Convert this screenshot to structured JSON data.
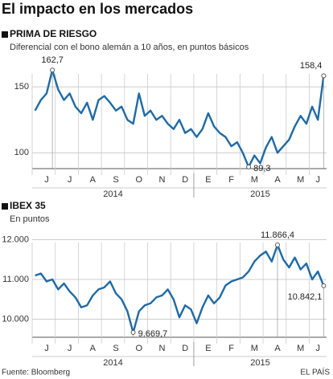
{
  "title": "El impacto en los mercados",
  "chart_data": [
    {
      "type": "line",
      "title": "PRIMA DE RIESGO",
      "subtitle": "Diferencial con el bono alemán a 10 años, en puntos básicos",
      "categories": [
        null,
        null,
        "J",
        null,
        null,
        null,
        "J",
        null,
        null,
        null,
        "A",
        null,
        null,
        null,
        "S",
        null,
        null,
        null,
        "O",
        null,
        null,
        null,
        "N",
        null,
        null,
        null,
        "D",
        null,
        null,
        null,
        "E",
        null,
        null,
        null,
        "F",
        null,
        null,
        null,
        "M",
        null,
        null,
        null,
        "A",
        null,
        null,
        null,
        "M",
        null,
        null,
        "J",
        null
      ],
      "years": [
        "2014",
        "2015"
      ],
      "values": [
        132,
        140,
        145,
        162.7,
        148,
        140,
        145,
        135,
        130,
        138,
        125,
        140,
        143,
        138,
        132,
        135,
        125,
        122,
        145,
        128,
        132,
        125,
        128,
        122,
        118,
        125,
        115,
        118,
        112,
        118,
        130,
        120,
        115,
        112,
        105,
        108,
        100,
        89.3,
        98,
        92,
        104,
        112,
        100,
        105,
        110,
        120,
        128,
        122,
        135,
        125,
        158.4
      ],
      "value_labels": [
        null,
        null,
        null,
        "162,7",
        null,
        null,
        null,
        null,
        null,
        null,
        null,
        null,
        null,
        null,
        null,
        null,
        null,
        null,
        null,
        null,
        null,
        null,
        null,
        null,
        null,
        null,
        null,
        null,
        null,
        null,
        null,
        null,
        null,
        null,
        null,
        null,
        null,
        "89,3",
        null,
        null,
        null,
        null,
        null,
        null,
        null,
        null,
        null,
        null,
        null,
        null,
        "158,4"
      ],
      "color": "#1f6aa5",
      "ylim": [
        88,
        172
      ],
      "yticks": [
        100,
        150
      ],
      "grid": true
    },
    {
      "type": "line",
      "title": "IBEX 35",
      "subtitle": "En puntos",
      "categories": [
        null,
        null,
        "J",
        null,
        null,
        null,
        "J",
        null,
        null,
        null,
        "A",
        null,
        null,
        null,
        "S",
        null,
        null,
        null,
        "O",
        null,
        null,
        null,
        "N",
        null,
        null,
        null,
        "D",
        null,
        null,
        null,
        "E",
        null,
        null,
        null,
        "F",
        null,
        null,
        null,
        "M",
        null,
        null,
        null,
        "A",
        null,
        null,
        null,
        "M",
        null,
        null,
        "J",
        null
      ],
      "years": [
        "2014",
        "2015"
      ],
      "values": [
        11100,
        11150,
        10950,
        11000,
        10750,
        10900,
        10700,
        10550,
        10300,
        10350,
        10600,
        10750,
        10800,
        10950,
        10650,
        10500,
        10200,
        9669.7,
        10200,
        10350,
        10400,
        10550,
        10600,
        10750,
        10500,
        10050,
        10350,
        10250,
        9900,
        10300,
        10600,
        10400,
        10550,
        10850,
        10950,
        11000,
        11050,
        11200,
        11450,
        11600,
        11700,
        11450,
        11866.4,
        11500,
        11300,
        11550,
        11250,
        11400,
        11000,
        11200,
        10842.1
      ],
      "value_labels": [
        null,
        null,
        null,
        null,
        null,
        null,
        null,
        null,
        null,
        null,
        null,
        null,
        null,
        null,
        null,
        null,
        null,
        "9.669,7",
        null,
        null,
        null,
        null,
        null,
        null,
        null,
        null,
        null,
        null,
        null,
        null,
        null,
        null,
        null,
        null,
        null,
        null,
        null,
        null,
        null,
        null,
        null,
        null,
        "11.866,4",
        null,
        null,
        null,
        null,
        null,
        null,
        null,
        "10.842,1"
      ],
      "color": "#1f6aa5",
      "ylim": [
        9550,
        12330
      ],
      "yticks": [
        {
          "value": 10000,
          "label": "10.000"
        },
        {
          "value": 11000,
          "label": "11.000"
        },
        {
          "value": 12000,
          "label": "12.000"
        }
      ],
      "grid": true
    }
  ],
  "source": "Fuente: Bloomberg",
  "credit": "EL PAÍS"
}
